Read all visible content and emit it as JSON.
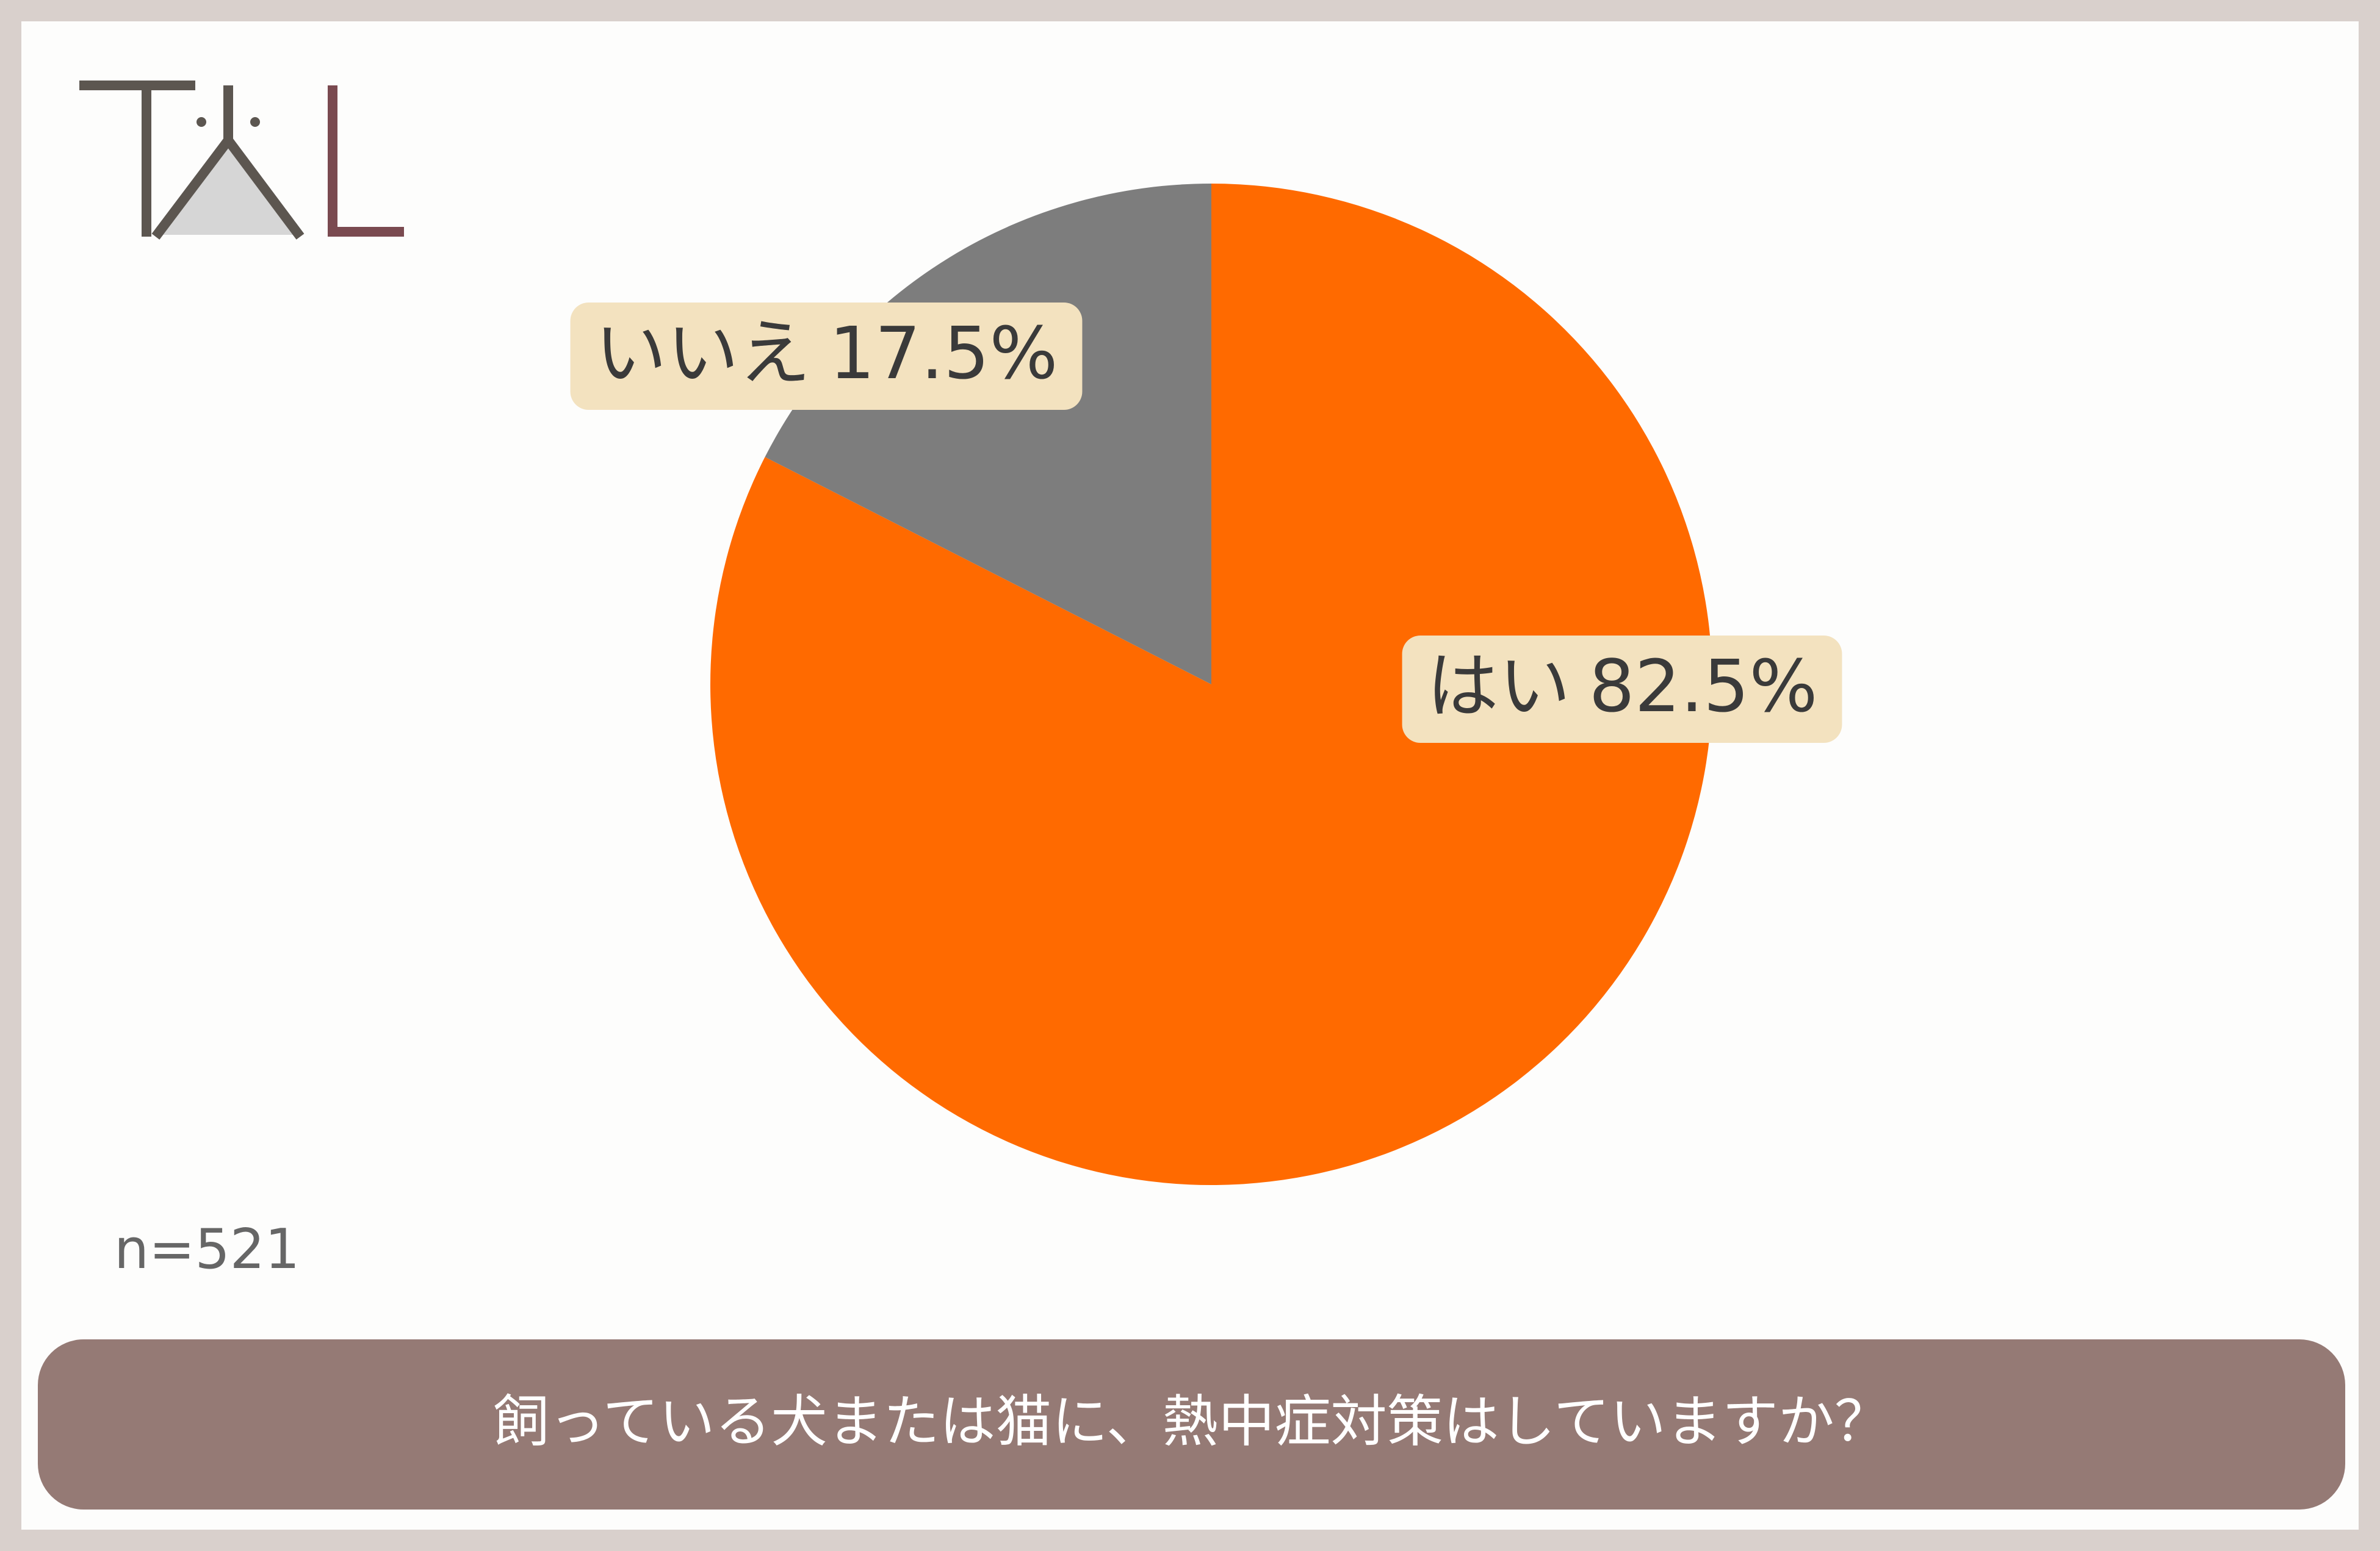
{
  "chart_data": {
    "type": "pie",
    "title": "飼っている犬または猫に、熱中症対策はしていますか？",
    "note": "n=521",
    "categories": [
      "はい",
      "いいえ"
    ],
    "values": [
      82.5,
      17.5
    ],
    "value_labels": [
      "82.5%",
      "17.5%"
    ],
    "colors": [
      "#ff6a00",
      "#7d7d7d"
    ]
  }
}
